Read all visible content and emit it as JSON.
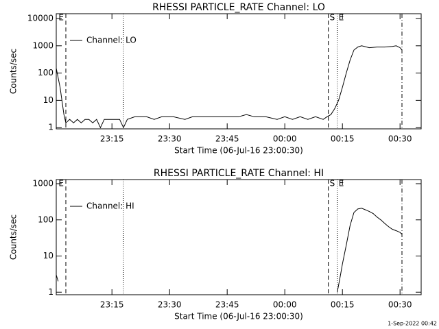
{
  "chart_data": [
    {
      "type": "line",
      "title": "RHESSI PARTICLE_RATE Channel: LO",
      "xlabel": "Start Time (06-Jul-16 23:00:30)",
      "ylabel": "Counts/sec",
      "log_y": true,
      "legend": "upper left",
      "xlim": [
        "23:00:30",
        "00:35:30"
      ],
      "xticks": [
        "23:15",
        "23:30",
        "23:45",
        "00:00",
        "00:15",
        "00:30"
      ],
      "ylim": [
        0.9,
        15000
      ],
      "yticks": [
        1,
        10,
        100,
        1000,
        10000
      ],
      "x": [
        "23:00:30",
        "23:01:30",
        "23:02:30",
        "23:03",
        "23:04",
        "23:05",
        "23:06",
        "23:07",
        "23:08",
        "23:09",
        "23:10",
        "23:11",
        "23:12",
        "23:13",
        "23:14",
        "23:16",
        "23:17",
        "23:18",
        "23:19",
        "23:21",
        "23:24",
        "23:26",
        "23:28",
        "23:31",
        "23:34",
        "23:36",
        "23:40",
        "23:44",
        "23:48",
        "23:50",
        "23:52",
        "23:55",
        "23:58",
        "00:00",
        "00:02",
        "00:04",
        "00:06",
        "00:08",
        "00:10",
        "00:11",
        "00:12",
        "00:13",
        "00:14",
        "00:15",
        "00:16",
        "00:17",
        "00:18",
        "00:19",
        "00:20",
        "00:22",
        "00:24",
        "00:26",
        "00:28",
        "00:29",
        "00:30",
        "00:30:30"
      ],
      "series": [
        {
          "name": "Channel: LO",
          "color": "#000000",
          "values": [
            150,
            30,
            3,
            1.5,
            2,
            1.5,
            2,
            1.5,
            2,
            2,
            1.5,
            2,
            1,
            2,
            2,
            2,
            2,
            1,
            2,
            2.5,
            2.5,
            2,
            2.5,
            2.5,
            2,
            2.5,
            2.5,
            2.5,
            2.5,
            3,
            2.5,
            2.5,
            2,
            2.5,
            2,
            2.5,
            2,
            2.5,
            2,
            2.5,
            3,
            5,
            10,
            30,
            100,
            300,
            700,
            900,
            1000,
            850,
            900,
            900,
            950,
            1000,
            850,
            700
          ]
        }
      ],
      "vlines": [
        {
          "x": "23:03:00",
          "style": "dashed"
        },
        {
          "x": "23:18:00",
          "style": "dotted"
        },
        {
          "x": "00:11:20",
          "style": "dashed"
        },
        {
          "x": "00:13:40",
          "style": "dotted"
        },
        {
          "x": "00:30:30",
          "style": "dashdot"
        }
      ],
      "annotations": [
        {
          "text": "E",
          "x": "23:00:45"
        },
        {
          "text": "S",
          "x": "00:11:20"
        },
        {
          "text": "E",
          "x": "00:13:40"
        }
      ]
    },
    {
      "type": "line",
      "title": "RHESSI PARTICLE_RATE Channel: HI",
      "xlabel": "Start Time (06-Jul-16 23:00:30)",
      "ylabel": "Counts/sec",
      "log_y": true,
      "legend": "upper left",
      "xlim": [
        "23:00:30",
        "00:35:30"
      ],
      "xticks": [
        "23:15",
        "23:30",
        "23:45",
        "00:00",
        "00:15",
        "00:30"
      ],
      "ylim": [
        0.85,
        1300
      ],
      "yticks": [
        1,
        10,
        100,
        1000
      ],
      "x": [
        "23:00:30",
        "23:01",
        "23:02",
        "00:13:40",
        "00:14:30",
        "00:15",
        "00:16",
        "00:17",
        "00:18",
        "00:19",
        "00:20",
        "00:21",
        "00:22",
        "00:23",
        "00:24",
        "00:25",
        "00:26",
        "00:27",
        "00:28",
        "00:29",
        "00:30",
        "00:30:30"
      ],
      "series": [
        {
          "name": "Channel: HI",
          "color": "#000000",
          "values": [
            3,
            2,
            null,
            1,
            3,
            6,
            20,
            70,
            160,
            200,
            210,
            190,
            170,
            150,
            120,
            100,
            80,
            65,
            55,
            50,
            45,
            40
          ]
        }
      ],
      "vlines": [
        {
          "x": "23:03:00",
          "style": "dashed"
        },
        {
          "x": "23:18:00",
          "style": "dotted"
        },
        {
          "x": "00:11:20",
          "style": "dashed"
        },
        {
          "x": "00:13:40",
          "style": "dotted"
        },
        {
          "x": "00:30:30",
          "style": "dashdot"
        }
      ],
      "annotations": [
        {
          "text": "E",
          "x": "23:00:45"
        },
        {
          "text": "S",
          "x": "00:11:20"
        },
        {
          "text": "E",
          "x": "00:13:40"
        }
      ]
    }
  ],
  "footer": "1-Sep-2022 00:42"
}
